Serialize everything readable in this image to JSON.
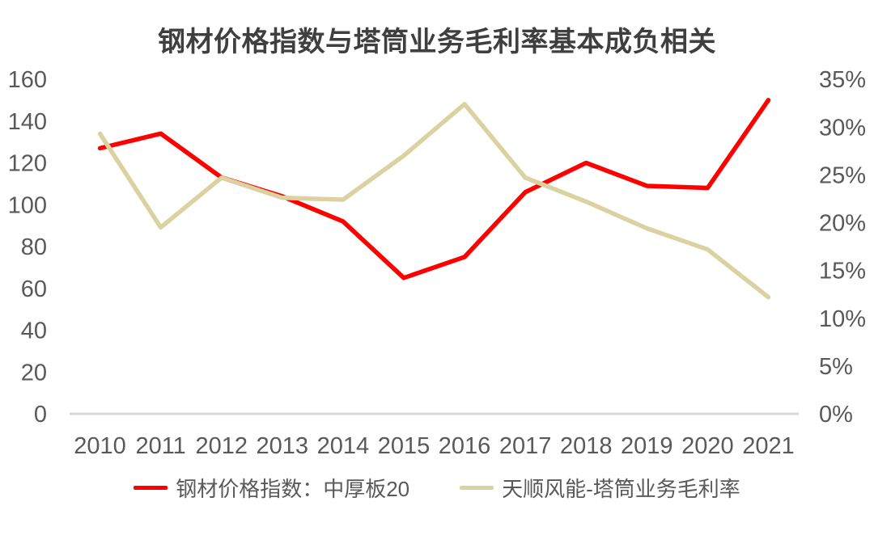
{
  "chart_data": {
    "type": "line",
    "title": "钢材价格指数与塔筒业务毛利率基本成负相关",
    "categories": [
      "2010",
      "2011",
      "2012",
      "2013",
      "2014",
      "2015",
      "2016",
      "2017",
      "2018",
      "2019",
      "2020",
      "2021"
    ],
    "series": [
      {
        "key": "steel-price-index",
        "name": "钢材价格指数：中厚板20",
        "axis": "left",
        "color": "#FF0000",
        "values": [
          127,
          134,
          113,
          104,
          92,
          65,
          75,
          106,
          120,
          109,
          108,
          150
        ]
      },
      {
        "key": "tower-gross-margin",
        "name": "天顺风能-塔筒业务毛利率",
        "axis": "right",
        "color": "#DBD2A2",
        "unit": "%",
        "values": [
          29.3,
          19.5,
          24.7,
          22.6,
          22.4,
          27.0,
          32.4,
          24.7,
          22.2,
          19.4,
          17.2,
          12.2
        ]
      }
    ],
    "left_axis": {
      "min": 0,
      "max": 160,
      "step": 20,
      "ticks": [
        "160",
        "140",
        "120",
        "100",
        "80",
        "60",
        "40",
        "20",
        "0"
      ]
    },
    "right_axis": {
      "min": 0,
      "max": 35,
      "step": 5,
      "unit": "%",
      "ticks": [
        "35%",
        "30%",
        "25%",
        "20%",
        "15%",
        "10%",
        "5%",
        "0%"
      ]
    },
    "legend_position": "bottom",
    "grid": false
  },
  "colors": {
    "title": "#3F3F3F",
    "axis_labels": "#595959",
    "axis_line": "#D9D9D9",
    "background": "#FFFFFF"
  }
}
